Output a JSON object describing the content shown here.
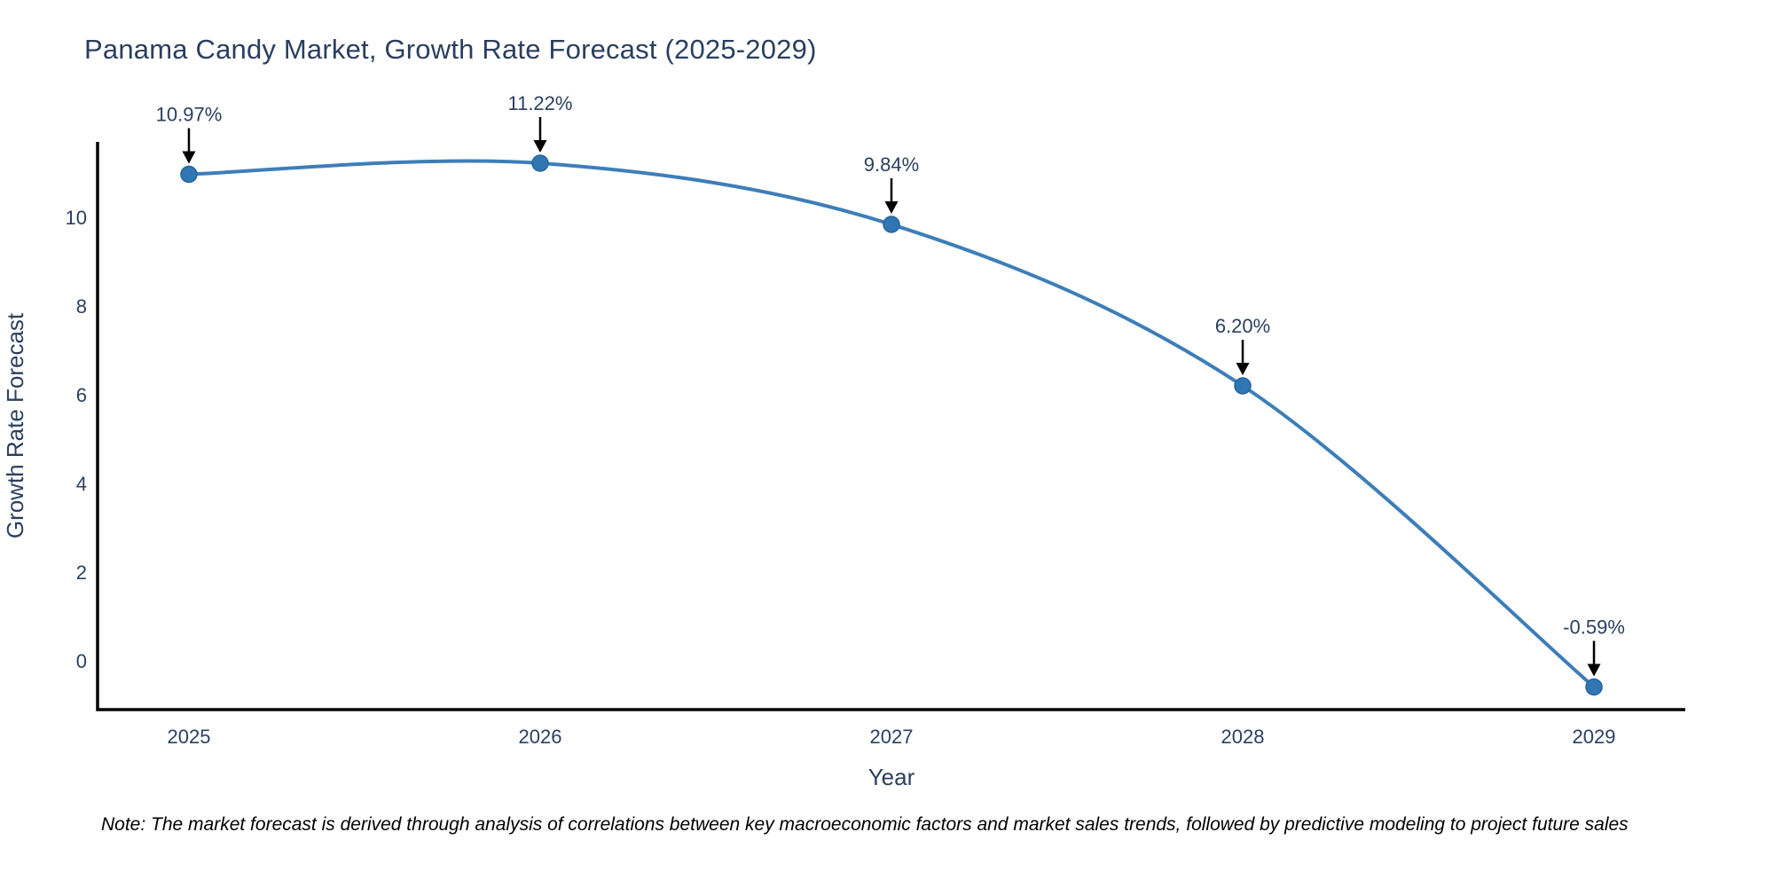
{
  "chart_data": {
    "type": "line",
    "title": "Panama Candy Market, Growth Rate Forecast (2025-2029)",
    "xlabel": "Year",
    "ylabel": "Growth Rate Forecast",
    "x": [
      2025,
      2026,
      2027,
      2028,
      2029
    ],
    "series": [
      {
        "name": "Growth Rate Forecast",
        "values": [
          10.97,
          11.22,
          9.84,
          6.2,
          -0.59
        ],
        "point_labels": [
          "10.97%",
          "11.22%",
          "9.84%",
          "6.20%",
          "-0.59%"
        ]
      }
    ],
    "xticks": [
      "2025",
      "2026",
      "2027",
      "2028",
      "2029"
    ],
    "yticks": [
      0,
      2,
      4,
      6,
      8,
      10
    ],
    "xlim": [
      2024.74,
      2029.26
    ],
    "ylim": [
      -1.1,
      11.7
    ],
    "line_shape": "spline",
    "grid": false,
    "legend": "none",
    "colors": {
      "line": "#3d7eb8",
      "marker": "#2f77b4",
      "marker_edge": "#27639b",
      "axis": "#000000",
      "arrow": "#000000",
      "text": "#2a3f5f",
      "background": "#ffffff"
    },
    "note": "Note: The market forecast is derived through analysis of correlations between key macroeconomic factors and market sales trends, followed by predictive modeling to project future sales"
  }
}
